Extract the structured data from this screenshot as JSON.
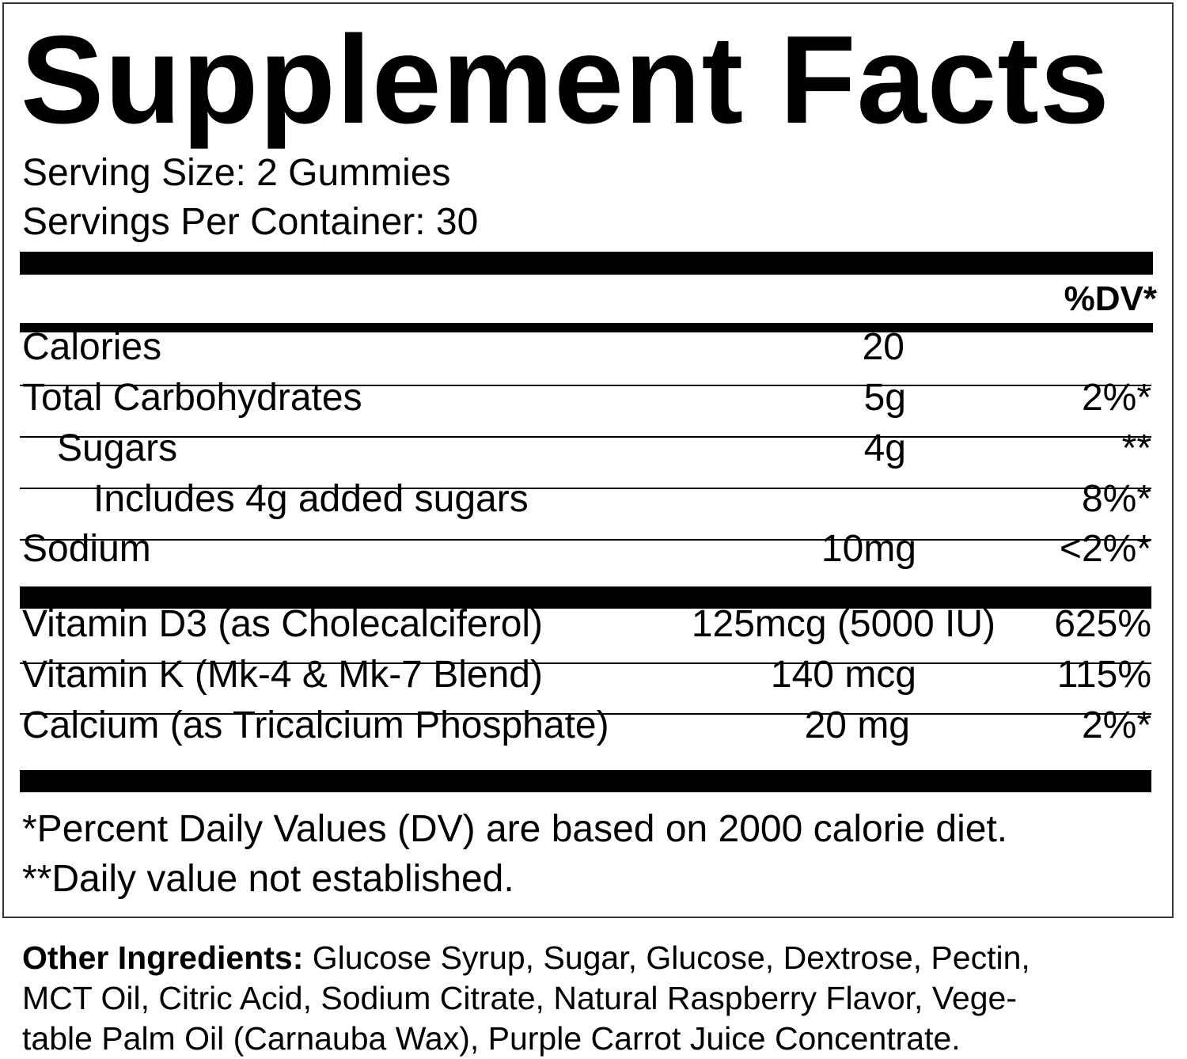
{
  "header": {
    "title": "Supplement Facts",
    "serving_size": "Serving Size: 2 Gummies",
    "servings_per_container": "Servings Per Container: 30"
  },
  "table": {
    "dv_header": "%DV*",
    "rows": [
      {
        "name": "Calories",
        "amount": "20"
      },
      {
        "name": "Total Carbohydrates",
        "amount": "5g",
        "dv": "2%*"
      },
      {
        "name": "Sugars",
        "amount": "4g",
        "dv": "**"
      },
      {
        "name": "Includes 4g added sugars",
        "dv": "8%*"
      },
      {
        "name": "Sodium",
        "amount": "10mg",
        "dv": "<2%*"
      },
      {
        "name": "Vitamin D3 (as Cholecalciferol)",
        "amount": "125mcg (5000 IU)",
        "dv": "625%"
      },
      {
        "name": "Vitamin K (Mk-4 & Mk-7 Blend)",
        "amount": "140 mcg",
        "dv": "115%"
      },
      {
        "name": "Calcium (as Tricalcium Phosphate)",
        "amount": "20 mg",
        "dv": "2%*"
      }
    ]
  },
  "footnotes": [
    "*Percent Daily Values (DV) are based on 2000 calorie diet.",
    "**Daily value not established."
  ],
  "other_ingredients": {
    "label": "Other Ingredients:",
    "lines": [
      "Glucose Syrup, Sugar, Glucose, Dextrose, Pectin,",
      "MCT Oil, Citric Acid, Sodium Citrate, Natural Raspberry Flavor, Vege-",
      "table Palm Oil (Carnauba Wax), Purple Carrot Juice Concentrate."
    ]
  }
}
